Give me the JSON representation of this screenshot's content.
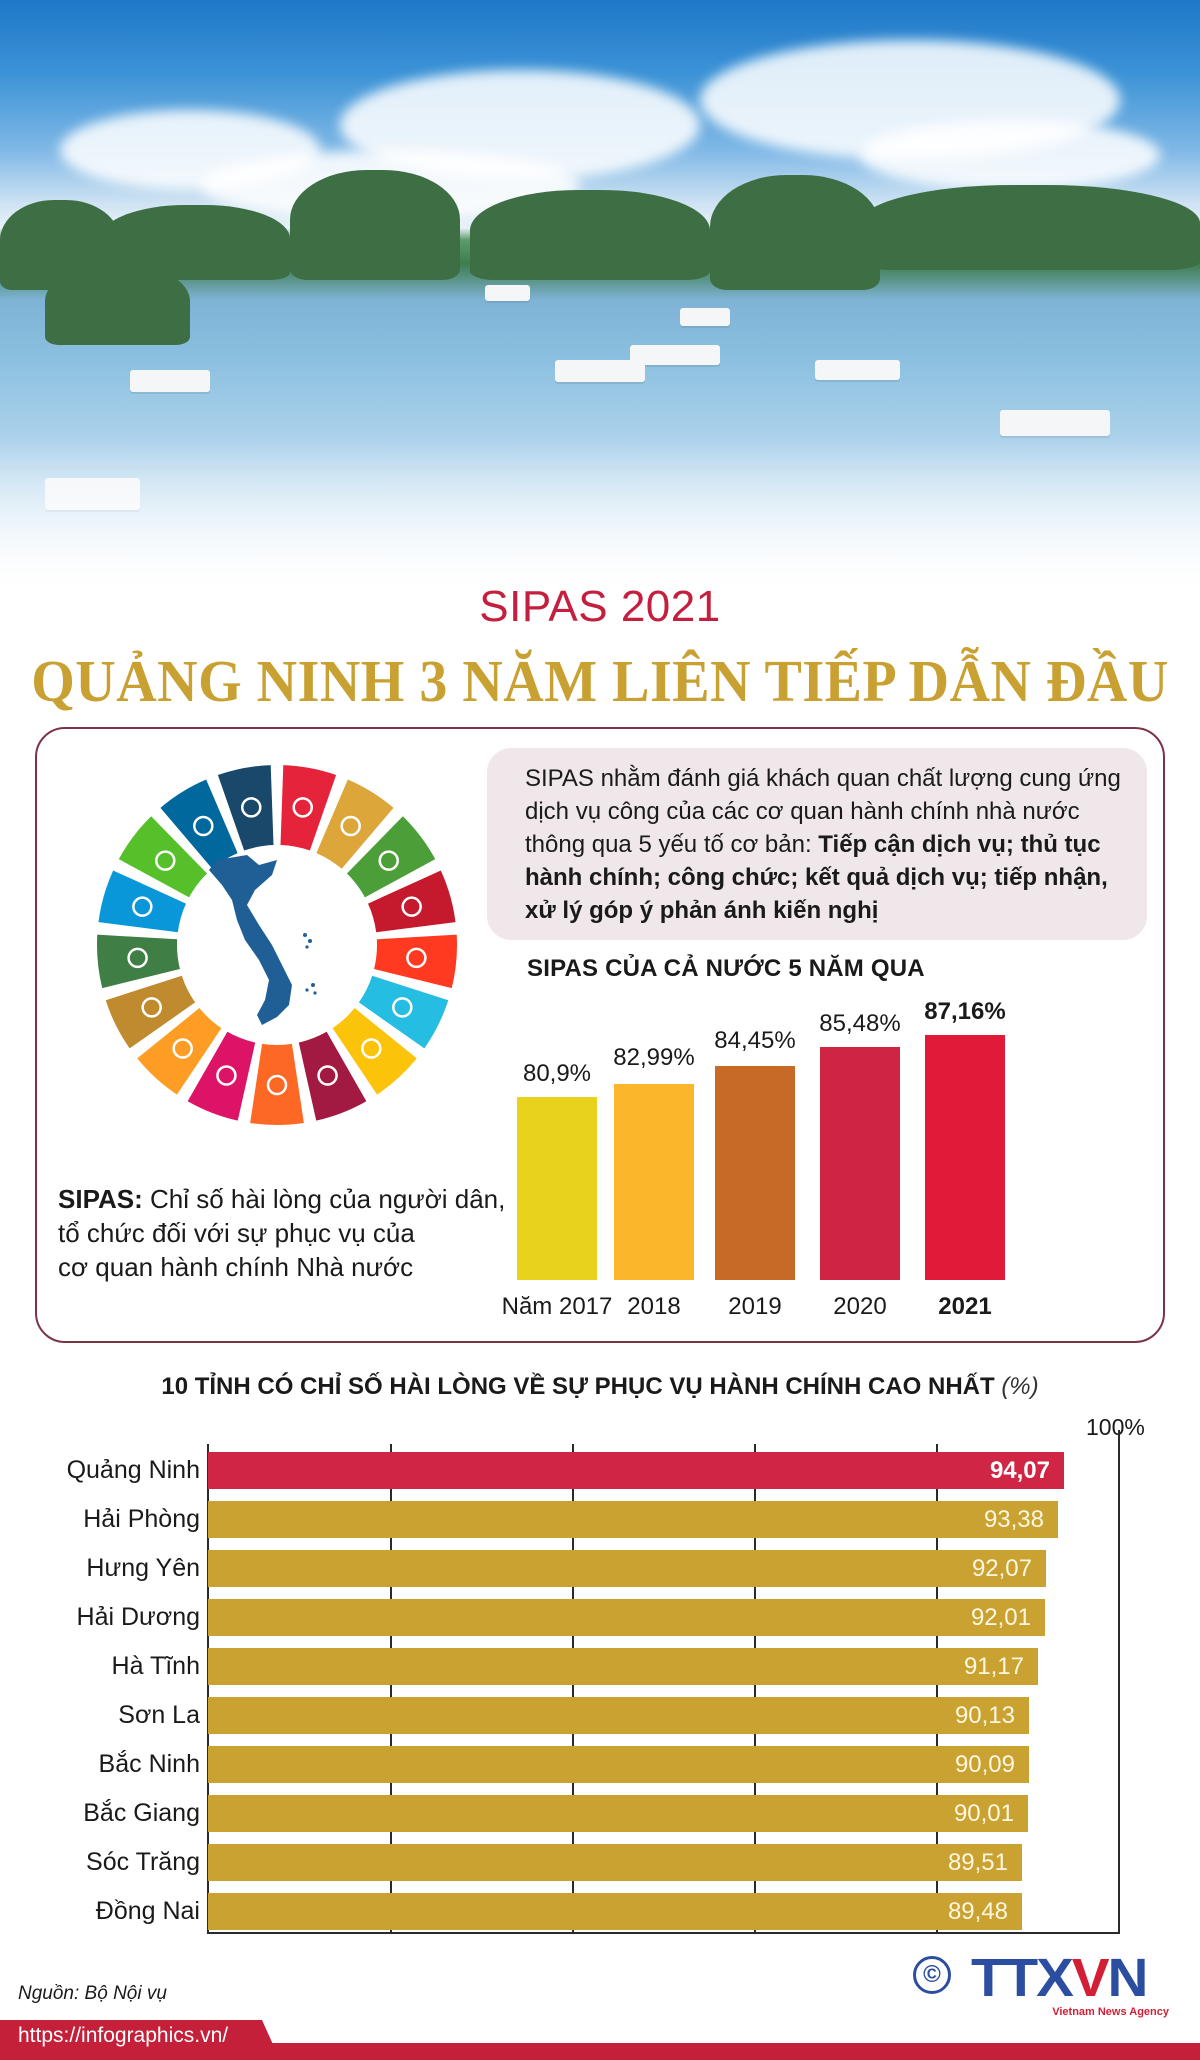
{
  "header": {
    "subtitle": "SIPAS 2021",
    "title": "QUẢNG NINH 3 NĂM LIÊN TIẾP DẪN ĐẦU"
  },
  "definition": {
    "term": "SIPAS:",
    "lines": [
      "Chỉ số hài lòng của người dân,",
      "tổ chức đối với sự phục vụ của",
      "cơ quan hành chính Nhà nước"
    ]
  },
  "callout": {
    "normal": "SIPAS nhằm đánh giá khách quan chất lượng cung ứng dịch vụ công của các cơ quan hành chính nhà nước thông qua 5 yếu tố cơ bản: ",
    "bold": "Tiếp cận dịch vụ; thủ tục hành chính; công chức; kết quả dịch vụ; tiếp nhận, xử lý góp ý phản ánh kiến nghị"
  },
  "sdg_wheel": {
    "icon": "sdg-wheel-with-vietnam-map",
    "colors": [
      "#e5243b",
      "#dda63a",
      "#4c9f38",
      "#c5192d",
      "#ff3a21",
      "#26bde2",
      "#fcc30b",
      "#a21942",
      "#fd6925",
      "#dd1367",
      "#fd9d24",
      "#bf8b2e",
      "#3f7e44",
      "#0a97d9",
      "#56c02b",
      "#00689d",
      "#19486a"
    ]
  },
  "chart_data": [
    {
      "type": "bar",
      "title": "SIPAS CỦA CẢ NƯỚC 5 NĂM QUA",
      "categories": [
        "Năm 2017",
        "2018",
        "2019",
        "2020",
        "2021"
      ],
      "values": [
        80.9,
        82.99,
        84.45,
        85.48,
        87.16
      ],
      "value_labels": [
        "80,9%",
        "82,99%",
        "84,45%",
        "85,48%",
        "87,16%"
      ],
      "colors": [
        "#e8d21c",
        "#fbb62c",
        "#c86a27",
        "#d02443",
        "#e01a38"
      ],
      "xlabel": "",
      "ylabel": "%",
      "grid": false
    },
    {
      "type": "bar",
      "orientation": "horizontal",
      "title": "10 TỈNH CÓ CHỈ SỐ HÀI LÒNG VỀ SỰ PHỤC VỤ HÀNH CHÍNH CAO NHẤT",
      "unit": "(%)",
      "categories": [
        "Quảng Ninh",
        "Hải Phòng",
        "Hưng Yên",
        "Hải Dương",
        "Hà Tĩnh",
        "Sơn La",
        "Bắc Ninh",
        "Bắc Giang",
        "Sóc Trăng",
        "Đồng Nai"
      ],
      "values": [
        94.07,
        93.38,
        92.07,
        92.01,
        91.17,
        90.13,
        90.09,
        90.01,
        89.51,
        89.48
      ],
      "value_labels": [
        "94,07",
        "93,38",
        "92,07",
        "92,01",
        "91,17",
        "90,13",
        "90,09",
        "90,01",
        "89,51",
        "89,48"
      ],
      "axis_max_label": "100%",
      "xlim": [
        0,
        100
      ],
      "grid": true,
      "highlight_color": "#d02544",
      "bar_color": "#c9a232"
    }
  ],
  "footer": {
    "source": "Nguồn: Bộ Nội vụ",
    "url": "https://infographics.vn/",
    "logo_text": "TTXVN",
    "logo_sub": "Vietnam News Agency",
    "copyright": "©"
  }
}
